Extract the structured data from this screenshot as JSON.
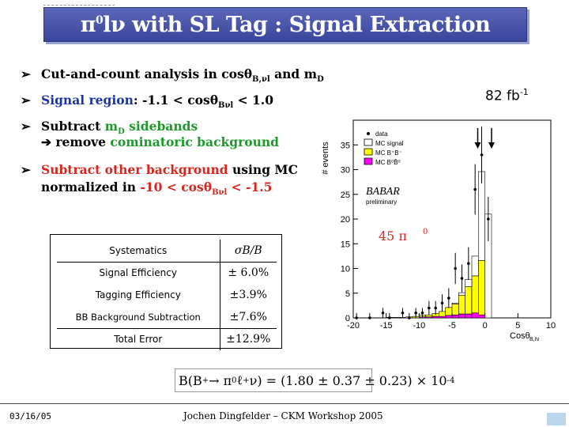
{
  "title": {
    "prefix": "π",
    "sup": "0",
    "rest": "lν with SL Tag : Signal Extraction"
  },
  "bullets": {
    "b1": {
      "text": "Cut-and-count analysis in cosθ",
      "sub1": "B,νl",
      "mid": " and m",
      "sub2": "D"
    },
    "b2": {
      "label": "Signal region",
      "text": ": -1.1 < cosθ",
      "sub": "Bνl",
      "end": " < 1.0"
    },
    "b3": {
      "text": "Subtract ",
      "colored": "m",
      "sub": "D",
      "colored_end": " sidebands"
    },
    "b3_line2": {
      "text": "remove ",
      "colored": "cominatoric background"
    },
    "b4": {
      "colored": "Subtract other background",
      "text": " using MC"
    },
    "b4_line2": {
      "text": "normalized in ",
      "colored": "-10 < cosθ",
      "sub": "Bνl",
      "colored_end": " < -1.5"
    }
  },
  "luminosity": {
    "value": "82 fb",
    "sup": "-1"
  },
  "signal_count": {
    "value": "45 π",
    "sup": "0"
  },
  "systematics": {
    "header": {
      "label": "Systematics",
      "value": "σB/B"
    },
    "rows": [
      {
        "label": "Signal Efficiency",
        "value": "± 6.0%"
      },
      {
        "label": "Tagging Efficiency",
        "value": "±3.9%"
      },
      {
        "label": "BB Background Subtraction",
        "value": "±7.6%"
      }
    ],
    "total": {
      "label": "Total Error",
      "value": "±12.9%"
    }
  },
  "result": {
    "lhs": "B(B",
    "lhs_sup": "+",
    "mid": " → π",
    "mid_sup": "0",
    "mid2": "ℓ",
    "mid2_sup": "+",
    "rest": "ν) = (1.80 ± 0.37 ± 0.23) × 10",
    "exp": "-4"
  },
  "footer": {
    "date": "03/16/05",
    "text": "Jochen Dingfelder – CKM Workshop 2005"
  },
  "chart_data": {
    "type": "bar",
    "ylabel": "# events",
    "xlabel": "Cosθ",
    "xlabel_sub": "B,ℓν",
    "xlim": [
      -20,
      10
    ],
    "ylim": [
      0,
      40
    ],
    "x_ticks": [
      -20,
      -15,
      -10,
      -5,
      0,
      5,
      10
    ],
    "y_ticks": [
      0,
      5,
      10,
      15,
      20,
      25,
      30,
      35
    ],
    "legend": {
      "position": "top-left",
      "entries": [
        "data",
        "MC signal",
        "MC B⁺B⁻",
        "MC B⁰B̄⁰"
      ]
    },
    "watermark": {
      "logo": "BABAR",
      "sub": "preliminary"
    },
    "bin_width": 1,
    "bin_starts": [
      -20,
      -19,
      -18,
      -17,
      -16,
      -15,
      -14,
      -13,
      -12,
      -11,
      -10,
      -9,
      -8,
      -7,
      -6,
      -5,
      -4,
      -3,
      -2,
      -1,
      0,
      1,
      2,
      3,
      4,
      5,
      6,
      7,
      8,
      9
    ],
    "series": [
      {
        "name": "MC B⁰B̄⁰",
        "values": [
          0,
          0,
          0,
          0,
          0,
          0,
          0,
          0,
          0,
          0,
          0.2,
          0.2,
          0.3,
          0.3,
          0.5,
          0.6,
          0.8,
          0.8,
          1,
          0.6,
          0,
          0,
          0,
          0,
          0,
          0,
          0,
          0,
          0,
          0
        ]
      },
      {
        "name": "MC B⁺B⁻",
        "values": [
          0,
          0,
          0,
          0,
          0,
          0.1,
          0.1,
          0.1,
          0.2,
          0.3,
          0.4,
          0.4,
          0.6,
          1,
          1.6,
          2.2,
          3.8,
          5.5,
          7.5,
          11,
          0,
          0,
          0,
          0,
          0,
          0,
          0,
          0,
          0,
          0
        ]
      },
      {
        "name": "MC signal",
        "values": [
          0,
          0,
          0,
          0,
          0,
          0,
          0,
          0,
          0,
          0,
          0,
          0,
          0,
          0,
          0,
          0.2,
          0.5,
          1.5,
          4,
          18,
          21,
          0,
          0,
          0,
          0,
          0,
          0,
          0,
          0,
          0
        ]
      }
    ],
    "data_points": [
      {
        "x": -19.5,
        "y": 0
      },
      {
        "x": -17.5,
        "y": 0
      },
      {
        "x": -15.5,
        "y": 1
      },
      {
        "x": -14.5,
        "y": 0
      },
      {
        "x": -12.5,
        "y": 1
      },
      {
        "x": -11.5,
        "y": 0
      },
      {
        "x": -10.5,
        "y": 1
      },
      {
        "x": -9.5,
        "y": 1
      },
      {
        "x": -8.5,
        "y": 2
      },
      {
        "x": -7.5,
        "y": 2
      },
      {
        "x": -6.5,
        "y": 3
      },
      {
        "x": -5.5,
        "y": 4
      },
      {
        "x": -4.5,
        "y": 10
      },
      {
        "x": -3.5,
        "y": 8
      },
      {
        "x": -2.5,
        "y": 11
      },
      {
        "x": -1.5,
        "y": 26
      },
      {
        "x": -0.5,
        "y": 33
      },
      {
        "x": 0.5,
        "y": 20
      }
    ],
    "arrows_at": [
      -1.1,
      1.0
    ]
  }
}
